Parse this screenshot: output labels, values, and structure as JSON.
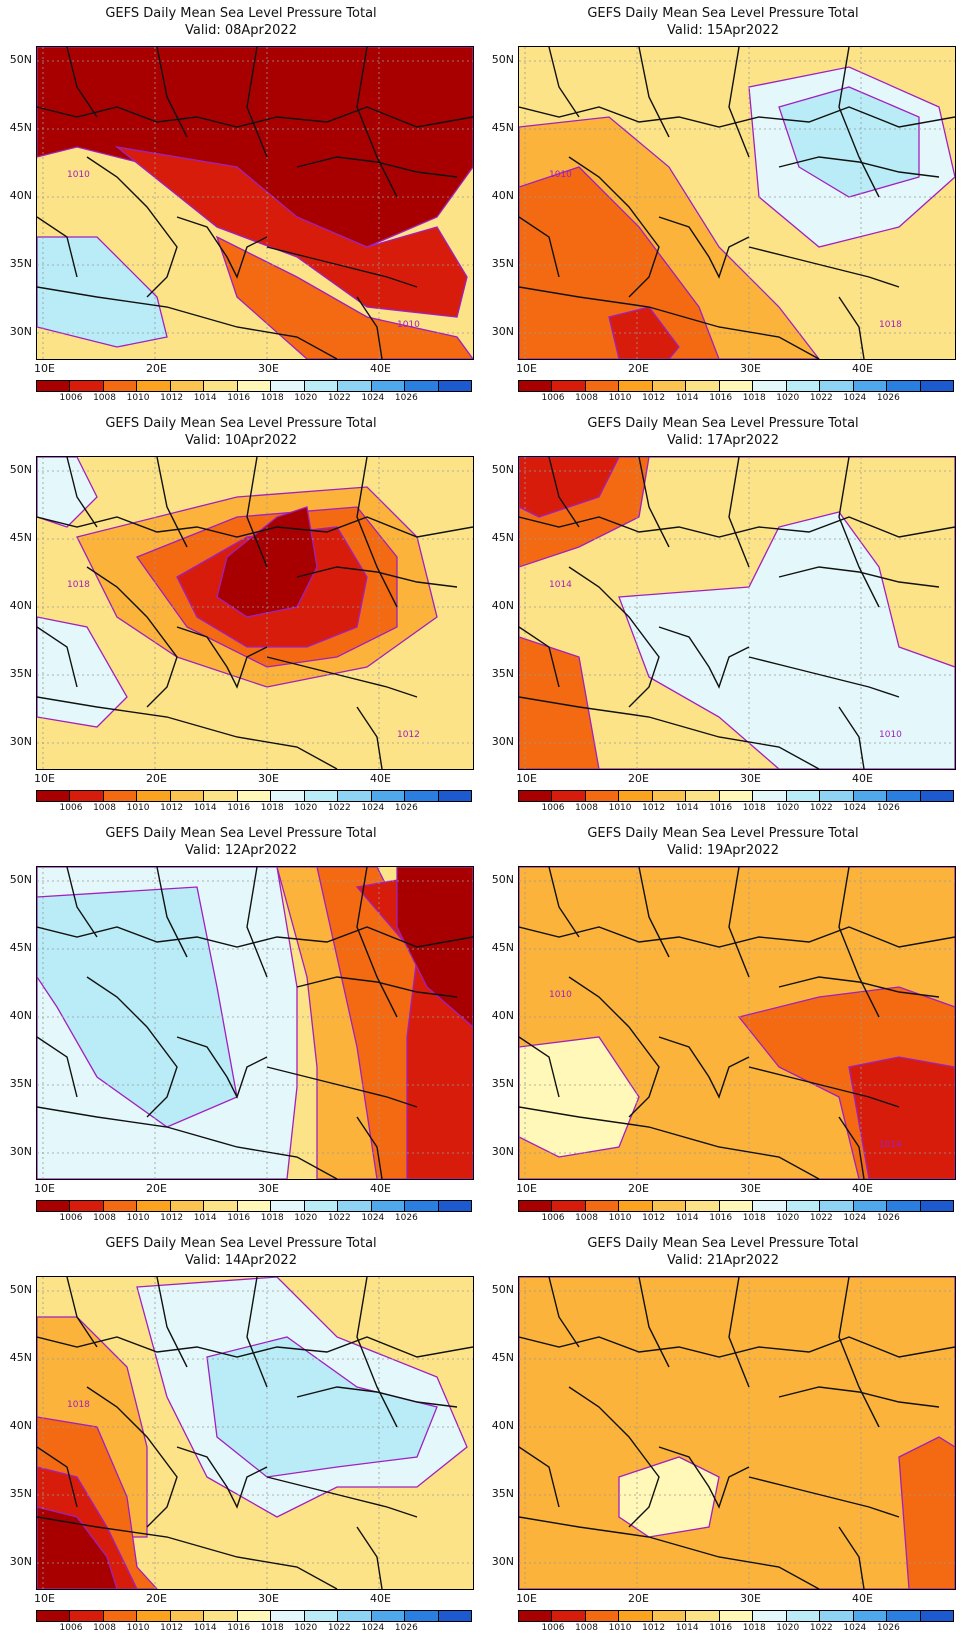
{
  "panels": [
    {
      "title": "GEFS Daily Mean Sea Level Pressure Total",
      "valid": "Valid: 08Apr2022",
      "base": "#fde387",
      "zones": [
        {
          "c": "#a80000"
        },
        {
          "c": "#d81c0c"
        },
        {
          "c": "#f36a12"
        },
        {
          "c": "#b9ecf6"
        }
      ],
      "contour_labels": [
        "1010",
        "1010"
      ]
    },
    {
      "title": "GEFS Daily Mean Sea Level Pressure Total",
      "valid": "Valid: 15Apr2022",
      "base": "#fde387",
      "zones": [
        {
          "c": "#fbb33b"
        },
        {
          "c": "#f36a12"
        },
        {
          "c": "#d81c0c"
        },
        {
          "c": "#e4f8fb"
        },
        {
          "c": "#b9ecf6"
        }
      ],
      "contour_labels": [
        "1010",
        "1018"
      ]
    },
    {
      "title": "GEFS Daily Mean Sea Level Pressure Total",
      "valid": "Valid: 10Apr2022",
      "base": "#fde387",
      "zones": [
        {
          "c": "#fbb33b"
        },
        {
          "c": "#f36a12"
        },
        {
          "c": "#d81c0c"
        },
        {
          "c": "#a80000"
        },
        {
          "c": "#e4f8fb"
        }
      ],
      "contour_labels": [
        "1018",
        "1012"
      ]
    },
    {
      "title": "GEFS Daily Mean Sea Level Pressure Total",
      "valid": "Valid: 17Apr2022",
      "base": "#fbb33b",
      "zones": [
        {
          "c": "#fde387"
        },
        {
          "c": "#f36a12"
        },
        {
          "c": "#e4f8fb"
        },
        {
          "c": "#d81c0c"
        }
      ],
      "contour_labels": [
        "1014",
        "1010"
      ]
    },
    {
      "title": "GEFS Daily Mean Sea Level Pressure Total",
      "valid": "Valid: 12Apr2022",
      "base": "#fde387",
      "zones": [
        {
          "c": "#e4f8fb"
        },
        {
          "c": "#b9ecf6"
        },
        {
          "c": "#fbb33b"
        },
        {
          "c": "#f36a12"
        },
        {
          "c": "#d81c0c"
        },
        {
          "c": "#a80000"
        }
      ],
      "contour_labels": []
    },
    {
      "title": "GEFS Daily Mean Sea Level Pressure Total",
      "valid": "Valid: 19Apr2022",
      "base": "#fde387",
      "zones": [
        {
          "c": "#fbb33b"
        },
        {
          "c": "#f36a12"
        },
        {
          "c": "#d81c0c"
        },
        {
          "c": "#fff8b8"
        }
      ],
      "contour_labels": [
        "1010",
        "1014"
      ]
    },
    {
      "title": "GEFS Daily Mean Sea Level Pressure Total",
      "valid": "Valid: 14Apr2022",
      "base": "#fde387",
      "zones": [
        {
          "c": "#e4f8fb"
        },
        {
          "c": "#b9ecf6"
        },
        {
          "c": "#fbb33b"
        },
        {
          "c": "#f36a12"
        },
        {
          "c": "#d81c0c"
        },
        {
          "c": "#a80000"
        }
      ],
      "contour_labels": [
        "1018"
      ]
    },
    {
      "title": "GEFS Daily Mean Sea Level Pressure Total",
      "valid": "Valid: 21Apr2022",
      "base": "#fde387",
      "zones": [
        {
          "c": "#fbb33b"
        },
        {
          "c": "#fff8b8"
        },
        {
          "c": "#f36a12"
        }
      ],
      "contour_labels": []
    }
  ],
  "lat_labels": [
    "50N",
    "45N",
    "40N",
    "35N",
    "30N"
  ],
  "lon_labels": [
    "10E",
    "20E",
    "30E",
    "40E"
  ],
  "colorbar": {
    "colors": [
      "#a80000",
      "#d81c0c",
      "#f36a12",
      "#fba21e",
      "#fbc450",
      "#fde387",
      "#fff8b8",
      "#e4f8fb",
      "#b9ecf6",
      "#8fd3f4",
      "#4fa7ec",
      "#2a7ee0",
      "#1d5ad0"
    ],
    "labels": [
      "1006",
      "1008",
      "1010",
      "1012",
      "1014",
      "1016",
      "1018",
      "1020",
      "1022",
      "1024",
      "1026"
    ]
  }
}
